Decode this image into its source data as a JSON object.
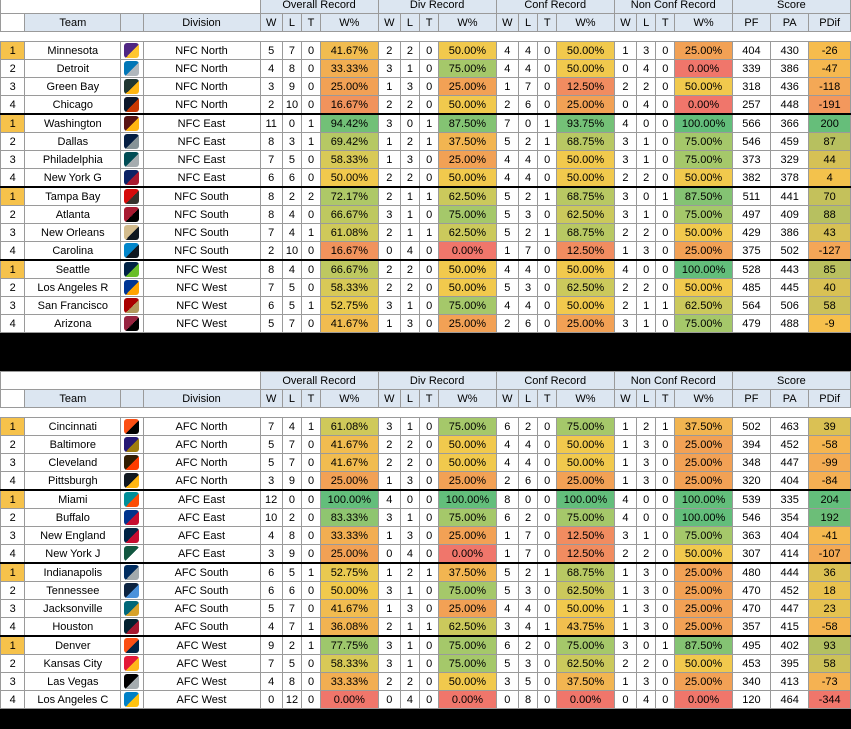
{
  "headers": {
    "group_labels": [
      "Overall Record",
      "Div Record",
      "Conf Record",
      "Non Conf Record",
      "Score"
    ],
    "team": "Team",
    "division": "Division",
    "w": "W",
    "l": "L",
    "t": "T",
    "pct": "W%",
    "pf": "PF",
    "pa": "PA",
    "pdif": "PDif"
  },
  "colors": {
    "highlight_rank": "#f6c24b",
    "header_bg": "#dce6f1",
    "pct_scale": {
      "100": "#63be7b",
      "75": "#a5c86a",
      "50": "#f1c94d",
      "25": "#f2a155",
      "0": "#f0766b"
    }
  },
  "nfc": [
    {
      "rank": "1",
      "team": "Minnesota",
      "logo": "vikings-logo",
      "div": "NFC North",
      "w": "5",
      "l": "7",
      "t": "0",
      "pct": "41.67%",
      "dw": "2",
      "dl": "2",
      "dt": "0",
      "dpct": "50.00%",
      "cw": "4",
      "cl": "4",
      "ct": "0",
      "cpct": "50.00%",
      "nw": "1",
      "nl": "3",
      "nt": "0",
      "npct": "25.00%",
      "pf": "404",
      "pa": "430",
      "pdif": "-26"
    },
    {
      "rank": "2",
      "team": "Detroit",
      "logo": "lions-logo",
      "div": "NFC North",
      "w": "4",
      "l": "8",
      "t": "0",
      "pct": "33.33%",
      "dw": "3",
      "dl": "1",
      "dt": "0",
      "dpct": "75.00%",
      "cw": "4",
      "cl": "4",
      "ct": "0",
      "cpct": "50.00%",
      "nw": "0",
      "nl": "4",
      "nt": "0",
      "npct": "0.00%",
      "pf": "339",
      "pa": "386",
      "pdif": "-47"
    },
    {
      "rank": "3",
      "team": "Green Bay",
      "logo": "packers-logo",
      "div": "NFC North",
      "w": "3",
      "l": "9",
      "t": "0",
      "pct": "25.00%",
      "dw": "1",
      "dl": "3",
      "dt": "0",
      "dpct": "25.00%",
      "cw": "1",
      "cl": "7",
      "ct": "0",
      "cpct": "12.50%",
      "nw": "2",
      "nl": "2",
      "nt": "0",
      "npct": "50.00%",
      "pf": "318",
      "pa": "436",
      "pdif": "-118"
    },
    {
      "rank": "4",
      "team": "Chicago",
      "logo": "bears-logo",
      "div": "NFC North",
      "w": "2",
      "l": "10",
      "t": "0",
      "pct": "16.67%",
      "dw": "2",
      "dl": "2",
      "dt": "0",
      "dpct": "50.00%",
      "cw": "2",
      "cl": "6",
      "ct": "0",
      "cpct": "25.00%",
      "nw": "0",
      "nl": "4",
      "nt": "0",
      "npct": "0.00%",
      "pf": "257",
      "pa": "448",
      "pdif": "-191"
    },
    {
      "rank": "1",
      "team": "Washington",
      "logo": "commanders-logo",
      "div": "NFC East",
      "w": "11",
      "l": "0",
      "t": "1",
      "pct": "94.42%",
      "dw": "3",
      "dl": "0",
      "dt": "1",
      "dpct": "87.50%",
      "cw": "7",
      "cl": "0",
      "ct": "1",
      "cpct": "93.75%",
      "nw": "4",
      "nl": "0",
      "nt": "0",
      "npct": "100.00%",
      "pf": "566",
      "pa": "366",
      "pdif": "200"
    },
    {
      "rank": "2",
      "team": "Dallas",
      "logo": "cowboys-logo",
      "div": "NFC East",
      "w": "8",
      "l": "3",
      "t": "1",
      "pct": "69.42%",
      "dw": "1",
      "dl": "2",
      "dt": "1",
      "dpct": "37.50%",
      "cw": "5",
      "cl": "2",
      "ct": "1",
      "cpct": "68.75%",
      "nw": "3",
      "nl": "1",
      "nt": "0",
      "npct": "75.00%",
      "pf": "546",
      "pa": "459",
      "pdif": "87"
    },
    {
      "rank": "3",
      "team": "Philadelphia",
      "logo": "eagles-logo",
      "div": "NFC East",
      "w": "7",
      "l": "5",
      "t": "0",
      "pct": "58.33%",
      "dw": "1",
      "dl": "3",
      "dt": "0",
      "dpct": "25.00%",
      "cw": "4",
      "cl": "4",
      "ct": "0",
      "cpct": "50.00%",
      "nw": "3",
      "nl": "1",
      "nt": "0",
      "npct": "75.00%",
      "pf": "373",
      "pa": "329",
      "pdif": "44"
    },
    {
      "rank": "4",
      "team": "New York G",
      "logo": "giants-logo",
      "div": "NFC East",
      "w": "6",
      "l": "6",
      "t": "0",
      "pct": "50.00%",
      "dw": "2",
      "dl": "2",
      "dt": "0",
      "dpct": "50.00%",
      "cw": "4",
      "cl": "4",
      "ct": "0",
      "cpct": "50.00%",
      "nw": "2",
      "nl": "2",
      "nt": "0",
      "npct": "50.00%",
      "pf": "382",
      "pa": "378",
      "pdif": "4"
    },
    {
      "rank": "1",
      "team": "Tampa Bay",
      "logo": "buccaneers-logo",
      "div": "NFC South",
      "w": "8",
      "l": "2",
      "t": "2",
      "pct": "72.17%",
      "dw": "2",
      "dl": "1",
      "dt": "1",
      "dpct": "62.50%",
      "cw": "5",
      "cl": "2",
      "ct": "1",
      "cpct": "68.75%",
      "nw": "3",
      "nl": "0",
      "nt": "1",
      "npct": "87.50%",
      "pf": "511",
      "pa": "441",
      "pdif": "70"
    },
    {
      "rank": "2",
      "team": "Atlanta",
      "logo": "falcons-logo",
      "div": "NFC South",
      "w": "8",
      "l": "4",
      "t": "0",
      "pct": "66.67%",
      "dw": "3",
      "dl": "1",
      "dt": "0",
      "dpct": "75.00%",
      "cw": "5",
      "cl": "3",
      "ct": "0",
      "cpct": "62.50%",
      "nw": "3",
      "nl": "1",
      "nt": "0",
      "npct": "75.00%",
      "pf": "497",
      "pa": "409",
      "pdif": "88"
    },
    {
      "rank": "3",
      "team": "New Orleans",
      "logo": "saints-logo",
      "div": "NFC South",
      "w": "7",
      "l": "4",
      "t": "1",
      "pct": "61.08%",
      "dw": "2",
      "dl": "1",
      "dt": "1",
      "dpct": "62.50%",
      "cw": "5",
      "cl": "2",
      "ct": "1",
      "cpct": "68.75%",
      "nw": "2",
      "nl": "2",
      "nt": "0",
      "npct": "50.00%",
      "pf": "429",
      "pa": "386",
      "pdif": "43"
    },
    {
      "rank": "4",
      "team": "Carolina",
      "logo": "panthers-logo",
      "div": "NFC South",
      "w": "2",
      "l": "10",
      "t": "0",
      "pct": "16.67%",
      "dw": "0",
      "dl": "4",
      "dt": "0",
      "dpct": "0.00%",
      "cw": "1",
      "cl": "7",
      "ct": "0",
      "cpct": "12.50%",
      "nw": "1",
      "nl": "3",
      "nt": "0",
      "npct": "25.00%",
      "pf": "375",
      "pa": "502",
      "pdif": "-127"
    },
    {
      "rank": "1",
      "team": "Seattle",
      "logo": "seahawks-logo",
      "div": "NFC West",
      "w": "8",
      "l": "4",
      "t": "0",
      "pct": "66.67%",
      "dw": "2",
      "dl": "2",
      "dt": "0",
      "dpct": "50.00%",
      "cw": "4",
      "cl": "4",
      "ct": "0",
      "cpct": "50.00%",
      "nw": "4",
      "nl": "0",
      "nt": "0",
      "npct": "100.00%",
      "pf": "528",
      "pa": "443",
      "pdif": "85"
    },
    {
      "rank": "2",
      "team": "Los Angeles R",
      "logo": "rams-logo",
      "div": "NFC West",
      "w": "7",
      "l": "5",
      "t": "0",
      "pct": "58.33%",
      "dw": "2",
      "dl": "2",
      "dt": "0",
      "dpct": "50.00%",
      "cw": "5",
      "cl": "3",
      "ct": "0",
      "cpct": "62.50%",
      "nw": "2",
      "nl": "2",
      "nt": "0",
      "npct": "50.00%",
      "pf": "485",
      "pa": "445",
      "pdif": "40"
    },
    {
      "rank": "3",
      "team": "San Francisco",
      "logo": "49ers-logo",
      "div": "NFC West",
      "w": "6",
      "l": "5",
      "t": "1",
      "pct": "52.75%",
      "dw": "3",
      "dl": "1",
      "dt": "0",
      "dpct": "75.00%",
      "cw": "4",
      "cl": "4",
      "ct": "0",
      "cpct": "50.00%",
      "nw": "2",
      "nl": "1",
      "nt": "1",
      "npct": "62.50%",
      "pf": "564",
      "pa": "506",
      "pdif": "58"
    },
    {
      "rank": "4",
      "team": "Arizona",
      "logo": "cardinals-logo",
      "div": "NFC West",
      "w": "5",
      "l": "7",
      "t": "0",
      "pct": "41.67%",
      "dw": "1",
      "dl": "3",
      "dt": "0",
      "dpct": "25.00%",
      "cw": "2",
      "cl": "6",
      "ct": "0",
      "cpct": "25.00%",
      "nw": "3",
      "nl": "1",
      "nt": "0",
      "npct": "75.00%",
      "pf": "479",
      "pa": "488",
      "pdif": "-9"
    }
  ],
  "afc": [
    {
      "rank": "1",
      "team": "Cincinnati",
      "logo": "bengals-logo",
      "div": "AFC North",
      "w": "7",
      "l": "4",
      "t": "1",
      "pct": "61.08%",
      "dw": "3",
      "dl": "1",
      "dt": "0",
      "dpct": "75.00%",
      "cw": "6",
      "cl": "2",
      "ct": "0",
      "cpct": "75.00%",
      "nw": "1",
      "nl": "2",
      "nt": "1",
      "npct": "37.50%",
      "pf": "502",
      "pa": "463",
      "pdif": "39"
    },
    {
      "rank": "2",
      "team": "Baltimore",
      "logo": "ravens-logo",
      "div": "AFC North",
      "w": "5",
      "l": "7",
      "t": "0",
      "pct": "41.67%",
      "dw": "2",
      "dl": "2",
      "dt": "0",
      "dpct": "50.00%",
      "cw": "4",
      "cl": "4",
      "ct": "0",
      "cpct": "50.00%",
      "nw": "1",
      "nl": "3",
      "nt": "0",
      "npct": "25.00%",
      "pf": "394",
      "pa": "452",
      "pdif": "-58"
    },
    {
      "rank": "3",
      "team": "Cleveland",
      "logo": "browns-logo",
      "div": "AFC North",
      "w": "5",
      "l": "7",
      "t": "0",
      "pct": "41.67%",
      "dw": "2",
      "dl": "2",
      "dt": "0",
      "dpct": "50.00%",
      "cw": "4",
      "cl": "4",
      "ct": "0",
      "cpct": "50.00%",
      "nw": "1",
      "nl": "3",
      "nt": "0",
      "npct": "25.00%",
      "pf": "348",
      "pa": "447",
      "pdif": "-99"
    },
    {
      "rank": "4",
      "team": "Pittsburgh",
      "logo": "steelers-logo",
      "div": "AFC North",
      "w": "3",
      "l": "9",
      "t": "0",
      "pct": "25.00%",
      "dw": "1",
      "dl": "3",
      "dt": "0",
      "dpct": "25.00%",
      "cw": "2",
      "cl": "6",
      "ct": "0",
      "cpct": "25.00%",
      "nw": "1",
      "nl": "3",
      "nt": "0",
      "npct": "25.00%",
      "pf": "320",
      "pa": "404",
      "pdif": "-84"
    },
    {
      "rank": "1",
      "team": "Miami",
      "logo": "dolphins-logo",
      "div": "AFC East",
      "w": "12",
      "l": "0",
      "t": "0",
      "pct": "100.00%",
      "dw": "4",
      "dl": "0",
      "dt": "0",
      "dpct": "100.00%",
      "cw": "8",
      "cl": "0",
      "ct": "0",
      "cpct": "100.00%",
      "nw": "4",
      "nl": "0",
      "nt": "0",
      "npct": "100.00%",
      "pf": "539",
      "pa": "335",
      "pdif": "204"
    },
    {
      "rank": "2",
      "team": "Buffalo",
      "logo": "bills-logo",
      "div": "AFC East",
      "w": "10",
      "l": "2",
      "t": "0",
      "pct": "83.33%",
      "dw": "3",
      "dl": "1",
      "dt": "0",
      "dpct": "75.00%",
      "cw": "6",
      "cl": "2",
      "ct": "0",
      "cpct": "75.00%",
      "nw": "4",
      "nl": "0",
      "nt": "0",
      "npct": "100.00%",
      "pf": "546",
      "pa": "354",
      "pdif": "192"
    },
    {
      "rank": "3",
      "team": "New England",
      "logo": "patriots-logo",
      "div": "AFC East",
      "w": "4",
      "l": "8",
      "t": "0",
      "pct": "33.33%",
      "dw": "1",
      "dl": "3",
      "dt": "0",
      "dpct": "25.00%",
      "cw": "1",
      "cl": "7",
      "ct": "0",
      "cpct": "12.50%",
      "nw": "3",
      "nl": "1",
      "nt": "0",
      "npct": "75.00%",
      "pf": "363",
      "pa": "404",
      "pdif": "-41"
    },
    {
      "rank": "4",
      "team": "New York J",
      "logo": "jets-logo",
      "div": "AFC East",
      "w": "3",
      "l": "9",
      "t": "0",
      "pct": "25.00%",
      "dw": "0",
      "dl": "4",
      "dt": "0",
      "dpct": "0.00%",
      "cw": "1",
      "cl": "7",
      "ct": "0",
      "cpct": "12.50%",
      "nw": "2",
      "nl": "2",
      "nt": "0",
      "npct": "50.00%",
      "pf": "307",
      "pa": "414",
      "pdif": "-107"
    },
    {
      "rank": "1",
      "team": "Indianapolis",
      "logo": "colts-logo",
      "div": "AFC South",
      "w": "6",
      "l": "5",
      "t": "1",
      "pct": "52.75%",
      "dw": "1",
      "dl": "2",
      "dt": "1",
      "dpct": "37.50%",
      "cw": "5",
      "cl": "2",
      "ct": "1",
      "cpct": "68.75%",
      "nw": "1",
      "nl": "3",
      "nt": "0",
      "npct": "25.00%",
      "pf": "480",
      "pa": "444",
      "pdif": "36"
    },
    {
      "rank": "2",
      "team": "Tennessee",
      "logo": "titans-logo",
      "div": "AFC South",
      "w": "6",
      "l": "6",
      "t": "0",
      "pct": "50.00%",
      "dw": "3",
      "dl": "1",
      "dt": "0",
      "dpct": "75.00%",
      "cw": "5",
      "cl": "3",
      "ct": "0",
      "cpct": "62.50%",
      "nw": "1",
      "nl": "3",
      "nt": "0",
      "npct": "25.00%",
      "pf": "470",
      "pa": "452",
      "pdif": "18"
    },
    {
      "rank": "3",
      "team": "Jacksonville",
      "logo": "jaguars-logo",
      "div": "AFC South",
      "w": "5",
      "l": "7",
      "t": "0",
      "pct": "41.67%",
      "dw": "1",
      "dl": "3",
      "dt": "0",
      "dpct": "25.00%",
      "cw": "4",
      "cl": "4",
      "ct": "0",
      "cpct": "50.00%",
      "nw": "1",
      "nl": "3",
      "nt": "0",
      "npct": "25.00%",
      "pf": "470",
      "pa": "447",
      "pdif": "23"
    },
    {
      "rank": "4",
      "team": "Houston",
      "logo": "texans-logo",
      "div": "AFC South",
      "w": "4",
      "l": "7",
      "t": "1",
      "pct": "36.08%",
      "dw": "2",
      "dl": "1",
      "dt": "1",
      "dpct": "62.50%",
      "cw": "3",
      "cl": "4",
      "ct": "1",
      "cpct": "43.75%",
      "nw": "1",
      "nl": "3",
      "nt": "0",
      "npct": "25.00%",
      "pf": "357",
      "pa": "415",
      "pdif": "-58"
    },
    {
      "rank": "1",
      "team": "Denver",
      "logo": "broncos-logo",
      "div": "AFC West",
      "w": "9",
      "l": "2",
      "t": "1",
      "pct": "77.75%",
      "dw": "3",
      "dl": "1",
      "dt": "0",
      "dpct": "75.00%",
      "cw": "6",
      "cl": "2",
      "ct": "0",
      "cpct": "75.00%",
      "nw": "3",
      "nl": "0",
      "nt": "1",
      "npct": "87.50%",
      "pf": "495",
      "pa": "402",
      "pdif": "93"
    },
    {
      "rank": "2",
      "team": "Kansas City",
      "logo": "chiefs-logo",
      "div": "AFC West",
      "w": "7",
      "l": "5",
      "t": "0",
      "pct": "58.33%",
      "dw": "3",
      "dl": "1",
      "dt": "0",
      "dpct": "75.00%",
      "cw": "5",
      "cl": "3",
      "ct": "0",
      "cpct": "62.50%",
      "nw": "2",
      "nl": "2",
      "nt": "0",
      "npct": "50.00%",
      "pf": "453",
      "pa": "395",
      "pdif": "58"
    },
    {
      "rank": "3",
      "team": "Las Vegas",
      "logo": "raiders-logo",
      "div": "AFC West",
      "w": "4",
      "l": "8",
      "t": "0",
      "pct": "33.33%",
      "dw": "2",
      "dl": "2",
      "dt": "0",
      "dpct": "50.00%",
      "cw": "3",
      "cl": "5",
      "ct": "0",
      "cpct": "37.50%",
      "nw": "1",
      "nl": "3",
      "nt": "0",
      "npct": "25.00%",
      "pf": "340",
      "pa": "413",
      "pdif": "-73"
    },
    {
      "rank": "4",
      "team": "Los Angeles C",
      "logo": "chargers-logo",
      "div": "AFC West",
      "w": "0",
      "l": "12",
      "t": "0",
      "pct": "0.00%",
      "dw": "0",
      "dl": "4",
      "dt": "0",
      "dpct": "0.00%",
      "cw": "0",
      "cl": "8",
      "ct": "0",
      "cpct": "0.00%",
      "nw": "0",
      "nl": "4",
      "nt": "0",
      "npct": "0.00%",
      "pf": "120",
      "pa": "464",
      "pdif": "-344"
    }
  ]
}
